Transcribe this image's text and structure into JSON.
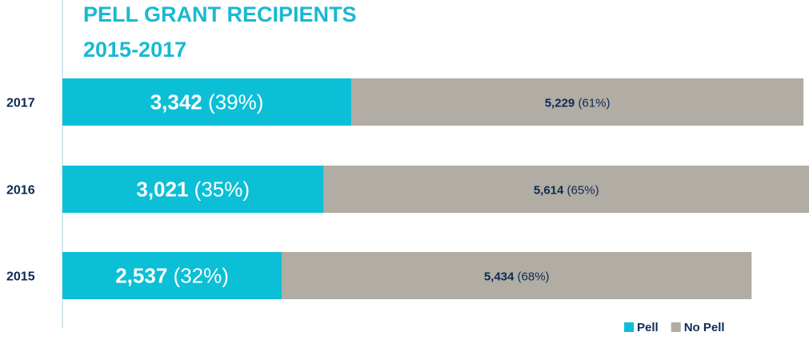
{
  "chart_data": {
    "type": "stacked-bar-horizontal",
    "title": [
      "PELL GRANT RECIPIENTS",
      "2015-2017"
    ],
    "categories": [
      "2017",
      "2016",
      "2015"
    ],
    "series": [
      {
        "name": "Pell",
        "color": "#0bbfd6",
        "values": [
          3342,
          3021,
          2537
        ],
        "value_labels": [
          "3,342",
          "3,021",
          "2,537"
        ],
        "percent_labels": [
          "(39%)",
          "(35%)",
          "(32%)"
        ]
      },
      {
        "name": "No Pell",
        "color": "#b1aca4",
        "values": [
          5229,
          5614,
          5434
        ],
        "value_labels": [
          "5,229",
          "5,614",
          "5,434"
        ],
        "percent_labels": [
          "(61%)",
          "(65%)",
          "(68%)"
        ]
      }
    ],
    "legend": "bottom-right"
  }
}
